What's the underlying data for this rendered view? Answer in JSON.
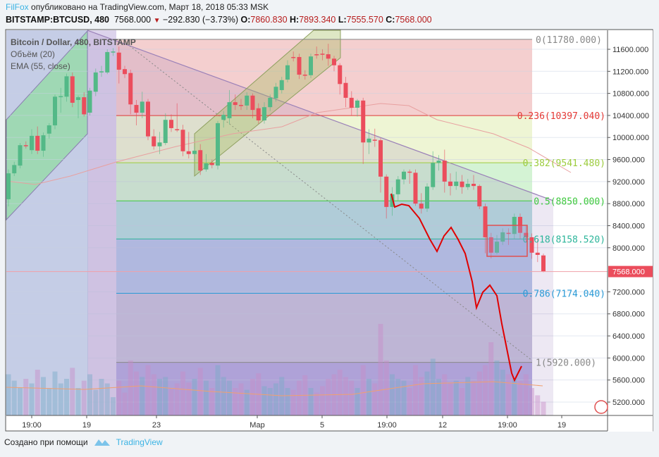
{
  "header": {
    "author": "FilFox",
    "published": "опубликовано на TradingView.com, Март 18, 2018 05:33 MSK",
    "symbol": "BITSTAMP:BTCUSD, 480",
    "last": "7568.000",
    "change": "−292.830 (−3.73%)",
    "o_label": "O:",
    "o": "7860.830",
    "h_label": "H:",
    "h": "7893.340",
    "l_label": "L:",
    "l": "7555.570",
    "c_label": "C:",
    "c": "7568.000"
  },
  "legend": {
    "title": "Bitcoin / Dollar, 480, BITSTAMP",
    "volume": "Объём (20)",
    "ema": "EMA (55, close)"
  },
  "footer": {
    "created_with": "Создано при помощи",
    "brand": "TradingView"
  },
  "chart_data": {
    "type": "candlestick",
    "title": "Bitcoin / Dollar, 480, BITSTAMP",
    "ylim": [
      4950,
      11950
    ],
    "y_ticks": [
      "11600.000",
      "11200.000",
      "10800.000",
      "10400.000",
      "10000.000",
      "9600.000",
      "9200.000",
      "8800.000",
      "8400.000",
      "8000.000",
      "7200.000",
      "6800.000",
      "6400.000",
      "6000.000",
      "5600.000",
      "5200.000"
    ],
    "x_ticks": [
      "19:00",
      "19",
      "23",
      "Мар",
      "5",
      "19:00",
      "12",
      "19:00",
      "19"
    ],
    "last_price": 7568.0,
    "last_price_label": "7568.000",
    "colors": {
      "up": "#53b987",
      "down": "#eb4d5c",
      "last": "#eb4d5c",
      "drawing": "#e00000"
    },
    "fib_levels": [
      {
        "ratio": 0,
        "price": 11780,
        "label": "0(11780.000)",
        "color": "#888888"
      },
      {
        "ratio": 0.236,
        "price": 10397.04,
        "label": "0.236(10397.040)",
        "color": "#e53935"
      },
      {
        "ratio": 0.382,
        "price": 9541.48,
        "label": "0.382(9541.480)",
        "color": "#9ccc3c"
      },
      {
        "ratio": 0.5,
        "price": 8850,
        "label": "0.5(8850.000)",
        "color": "#3cc83c"
      },
      {
        "ratio": 0.618,
        "price": 8158.52,
        "label": "0.618(8158.520)",
        "color": "#2bb59a"
      },
      {
        "ratio": 0.786,
        "price": 7174.04,
        "label": "0.786(7174.040)",
        "color": "#2a9ad6"
      },
      {
        "ratio": 1,
        "price": 5920,
        "label": "1(5920.000)",
        "color": "#888888"
      }
    ],
    "ohlc": [
      [
        8880,
        9420,
        8750,
        9350
      ],
      [
        9350,
        9560,
        9300,
        9500
      ],
      [
        9490,
        9900,
        9440,
        9860
      ],
      [
        9860,
        9930,
        9800,
        9850
      ],
      [
        9770,
        10150,
        9700,
        10030
      ],
      [
        10030,
        10200,
        9700,
        9760
      ],
      [
        9760,
        10090,
        9650,
        10040
      ],
      [
        10070,
        10260,
        9980,
        10220
      ],
      [
        10220,
        10780,
        10150,
        10740
      ],
      [
        10740,
        10900,
        10450,
        10750
      ],
      [
        10740,
        11160,
        10650,
        11110
      ],
      [
        11110,
        11180,
        10550,
        10630
      ],
      [
        10680,
        10760,
        10350,
        10730
      ],
      [
        10730,
        10820,
        10380,
        10420
      ],
      [
        10450,
        10900,
        10400,
        10850
      ],
      [
        10830,
        11250,
        10750,
        11180
      ],
      [
        11190,
        11300,
        11100,
        11200
      ],
      [
        11180,
        11600,
        11150,
        11550
      ],
      [
        11550,
        11620,
        11480,
        11560
      ],
      [
        11540,
        11650,
        10980,
        11230
      ],
      [
        11240,
        11300,
        11080,
        11150
      ],
      [
        11170,
        11230,
        10420,
        10600
      ],
      [
        10590,
        10680,
        10220,
        10450
      ],
      [
        10450,
        10830,
        10350,
        10650
      ],
      [
        10650,
        10700,
        9950,
        10020
      ],
      [
        10020,
        10150,
        9780,
        9840
      ],
      [
        9840,
        10100,
        9700,
        9910
      ],
      [
        9900,
        10440,
        9860,
        10320
      ],
      [
        10320,
        10420,
        10100,
        10170
      ],
      [
        10150,
        10620,
        10100,
        10140
      ],
      [
        10140,
        10230,
        9660,
        9750
      ],
      [
        9750,
        10100,
        9620,
        9700
      ],
      [
        9700,
        9830,
        9570,
        9760
      ],
      [
        9770,
        9880,
        9320,
        9400
      ],
      [
        9420,
        9700,
        9380,
        9530
      ],
      [
        9540,
        9600,
        9440,
        9500
      ],
      [
        9490,
        10300,
        9420,
        10260
      ],
      [
        10320,
        10480,
        10180,
        10410
      ],
      [
        10350,
        10860,
        10240,
        10640
      ],
      [
        10640,
        10780,
        10500,
        10590
      ],
      [
        10590,
        10700,
        10500,
        10580
      ],
      [
        10580,
        10820,
        10500,
        10760
      ],
      [
        10760,
        10800,
        10350,
        10500
      ],
      [
        10530,
        10620,
        10250,
        10310
      ],
      [
        10310,
        10640,
        10250,
        10550
      ],
      [
        10550,
        10780,
        10480,
        10720
      ],
      [
        10710,
        10990,
        10650,
        10920
      ],
      [
        10860,
        11100,
        10800,
        11040
      ],
      [
        11050,
        11400,
        11000,
        11310
      ],
      [
        11460,
        11560,
        11380,
        11450
      ],
      [
        11460,
        11520,
        11060,
        11140
      ],
      [
        11140,
        11220,
        11050,
        11130
      ],
      [
        11130,
        11520,
        11080,
        11470
      ],
      [
        11510,
        11650,
        11430,
        11500
      ],
      [
        11520,
        11600,
        11400,
        11510
      ],
      [
        11510,
        11700,
        11300,
        11430
      ],
      [
        11430,
        11480,
        11200,
        11310
      ],
      [
        11310,
        11350,
        10780,
        10970
      ],
      [
        10990,
        11100,
        10550,
        10720
      ],
      [
        10720,
        10840,
        10400,
        10540
      ],
      [
        10540,
        10700,
        10380,
        10670
      ],
      [
        10670,
        10720,
        9520,
        9910
      ],
      [
        9910,
        10150,
        9700,
        9980
      ],
      [
        9960,
        10160,
        9830,
        9950
      ],
      [
        9950,
        9990,
        9000,
        9290
      ],
      [
        9290,
        9330,
        8530,
        8740
      ],
      [
        8740,
        9100,
        8580,
        8970
      ],
      [
        8970,
        9300,
        8850,
        9240
      ],
      [
        9240,
        9420,
        9150,
        9380
      ],
      [
        9380,
        9420,
        9160,
        9370
      ],
      [
        9360,
        9420,
        8760,
        8800
      ],
      [
        8800,
        8990,
        8620,
        8710
      ],
      [
        8710,
        9170,
        8650,
        9110
      ],
      [
        9100,
        9750,
        9050,
        9540
      ],
      [
        9540,
        9680,
        9400,
        9580
      ],
      [
        9580,
        9780,
        9000,
        9200
      ],
      [
        9200,
        9350,
        8950,
        9120
      ],
      [
        9120,
        9380,
        9050,
        9200
      ],
      [
        9200,
        9320,
        8980,
        9100
      ],
      [
        9100,
        9250,
        9050,
        9160
      ],
      [
        9160,
        9320,
        9050,
        9120
      ],
      [
        9120,
        9150,
        8700,
        8750
      ],
      [
        8750,
        8800,
        7900,
        8190
      ],
      [
        8190,
        8270,
        7810,
        7910
      ],
      [
        7910,
        8230,
        7880,
        8110
      ],
      [
        8110,
        8350,
        8050,
        8280
      ],
      [
        8270,
        8350,
        8050,
        8260
      ],
      [
        8250,
        8620,
        8160,
        8560
      ],
      [
        8560,
        8620,
        8160,
        8270
      ],
      [
        8270,
        8400,
        8100,
        8190
      ],
      [
        8190,
        8260,
        7800,
        7910
      ],
      [
        7910,
        8140,
        7740,
        7870
      ],
      [
        7860,
        7893,
        7556,
        7568
      ]
    ],
    "volume_relative": [
      45,
      38,
      30,
      40,
      35,
      50,
      42,
      30,
      48,
      35,
      40,
      52,
      30,
      38,
      45,
      28,
      40,
      35,
      20,
      38,
      25,
      60,
      48,
      42,
      55,
      45,
      40,
      42,
      30,
      35,
      48,
      36,
      40,
      52,
      38,
      30,
      55,
      42,
      38,
      30,
      35,
      28,
      40,
      46,
      32,
      30,
      35,
      42,
      30,
      28,
      38,
      44,
      30,
      25,
      32,
      40,
      45,
      50,
      42,
      38,
      30,
      55,
      40,
      35,
      100,
      60,
      45,
      40,
      38,
      30,
      55,
      42,
      48,
      62,
      40,
      45,
      35,
      38,
      30,
      42,
      38,
      48,
      55,
      80,
      60,
      50,
      45,
      40,
      38,
      45,
      30,
      22,
      15
    ]
  }
}
